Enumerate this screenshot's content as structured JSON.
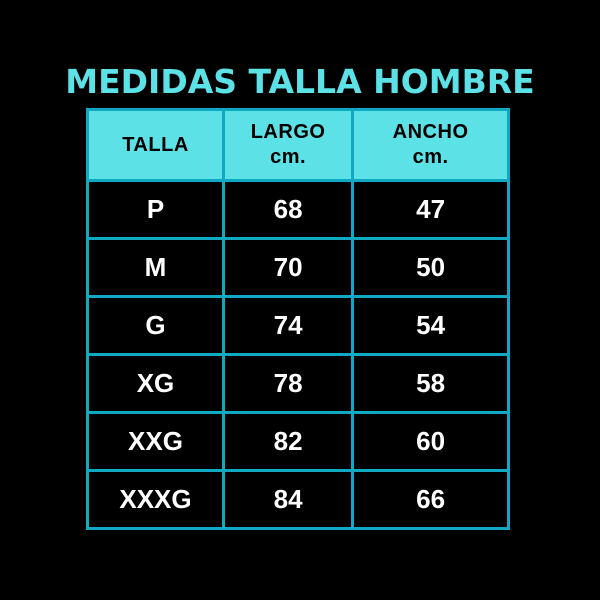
{
  "title": "MEDIDAS TALLA HOMBRE",
  "colors": {
    "background": "#000000",
    "accent_cyan": "#5CE1E6",
    "table_border": "#0FA9C4",
    "header_cell_background": "#5CE1E6",
    "header_text": "#000000",
    "body_text": "#FFFFFF"
  },
  "table": {
    "headers": [
      {
        "label": "TALLA",
        "sub": ""
      },
      {
        "label": "LARGO",
        "sub": "cm."
      },
      {
        "label": "ANCHO",
        "sub": "cm."
      }
    ],
    "rows": [
      {
        "talla": "P",
        "largo": "68",
        "ancho": "47"
      },
      {
        "talla": "M",
        "largo": "70",
        "ancho": "50"
      },
      {
        "talla": "G",
        "largo": "74",
        "ancho": "54"
      },
      {
        "talla": "XG",
        "largo": "78",
        "ancho": "58"
      },
      {
        "talla": "XXG",
        "largo": "82",
        "ancho": "60"
      },
      {
        "talla": "XXXG",
        "largo": "84",
        "ancho": "66"
      }
    ]
  },
  "chart_data": {
    "type": "table",
    "title": "MEDIDAS TALLA HOMBRE",
    "columns": [
      "TALLA",
      "LARGO cm.",
      "ANCHO cm."
    ],
    "rows": [
      [
        "P",
        68,
        47
      ],
      [
        "M",
        70,
        50
      ],
      [
        "G",
        74,
        54
      ],
      [
        "XG",
        78,
        58
      ],
      [
        "XXG",
        82,
        60
      ],
      [
        "XXXG",
        84,
        66
      ]
    ]
  }
}
